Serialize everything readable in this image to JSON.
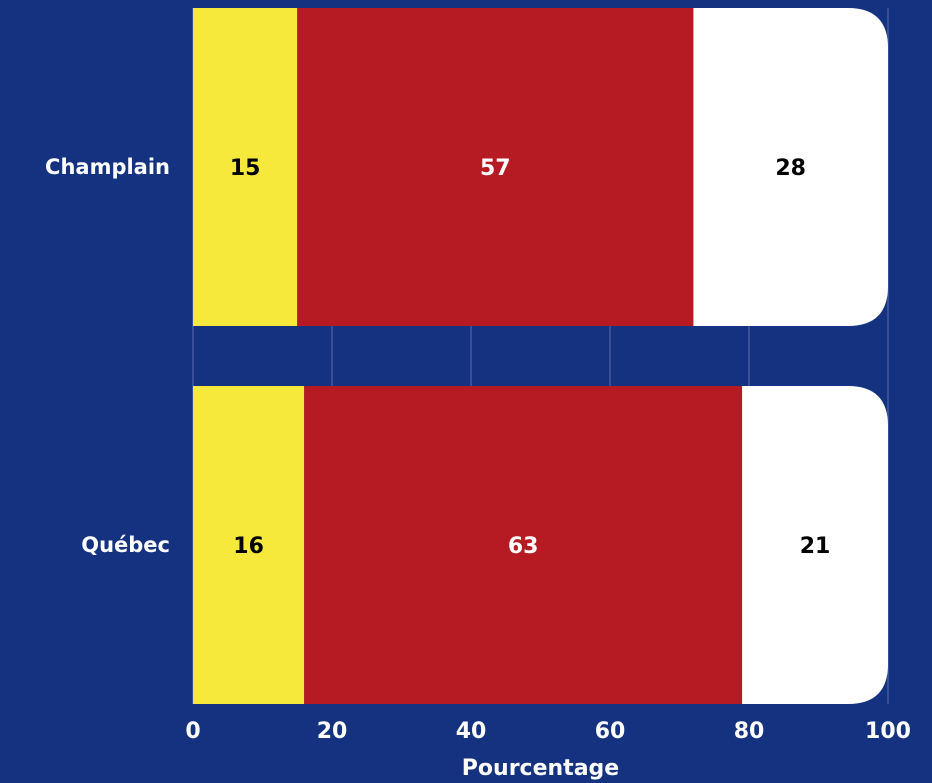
{
  "chart_data": {
    "type": "bar",
    "orientation": "horizontal",
    "stacked": true,
    "categories": [
      "Champlain",
      "Québec"
    ],
    "series": [
      {
        "values": [
          15,
          16
        ],
        "color": "#f7e93c",
        "label_color": "#000000"
      },
      {
        "values": [
          57,
          63
        ],
        "color": "#b61a22",
        "label_color": "#ffffff"
      },
      {
        "values": [
          28,
          21
        ],
        "color": "#ffffff",
        "label_color": "#000000"
      }
    ],
    "xlabel": "Pourcentage",
    "ylabel": "",
    "xlim": [
      0,
      100
    ],
    "xticks": [
      0,
      20,
      40,
      60,
      80,
      100
    ],
    "grid": true,
    "background": "#14327f",
    "grid_color": "#5a6fb0"
  }
}
